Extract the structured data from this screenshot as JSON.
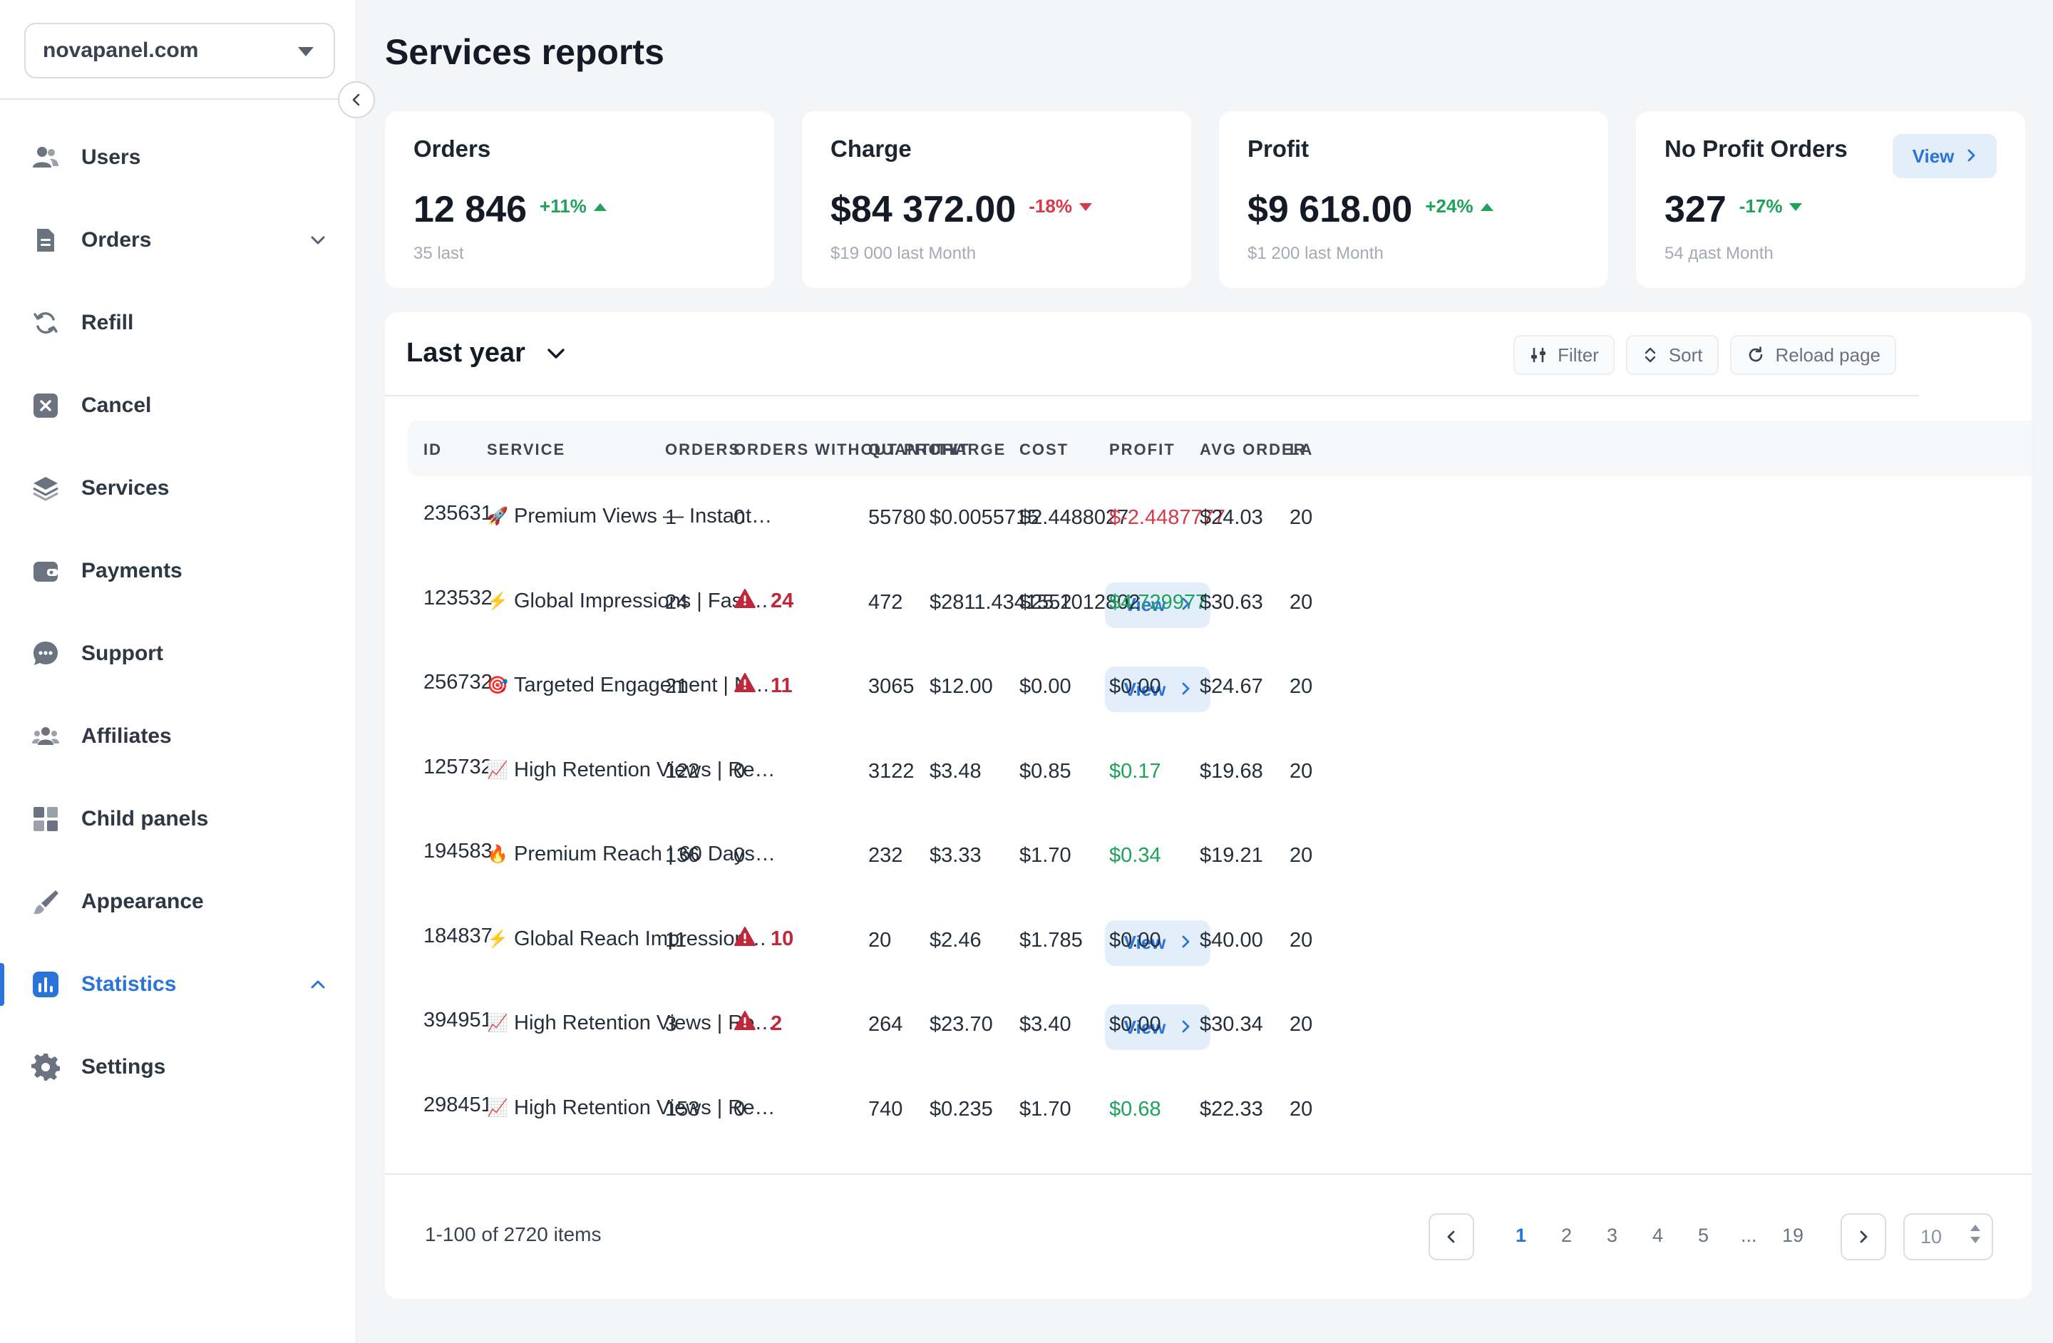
{
  "sidebar": {
    "site": "novapanel.com",
    "items": [
      {
        "label": "Users",
        "icon": "users-icon",
        "chevron": ""
      },
      {
        "label": "Orders",
        "icon": "orders-icon",
        "chevron": "down"
      },
      {
        "label": "Refill",
        "icon": "refill-icon",
        "chevron": ""
      },
      {
        "label": "Cancel",
        "icon": "cancel-icon",
        "chevron": ""
      },
      {
        "label": "Services",
        "icon": "layers-icon",
        "chevron": ""
      },
      {
        "label": "Payments",
        "icon": "wallet-icon",
        "chevron": ""
      },
      {
        "label": "Support",
        "icon": "chat-icon",
        "chevron": ""
      },
      {
        "label": "Affiliates",
        "icon": "affiliates-icon",
        "chevron": ""
      },
      {
        "label": "Child panels",
        "icon": "grid-icon",
        "chevron": ""
      },
      {
        "label": "Appearance",
        "icon": "brush-icon",
        "chevron": ""
      },
      {
        "label": "Statistics",
        "icon": "chart-icon",
        "chevron": "up",
        "active": true
      },
      {
        "label": "Settings",
        "icon": "gear-icon",
        "chevron": ""
      }
    ]
  },
  "page": {
    "title": "Services reports"
  },
  "cards": [
    {
      "title": "Orders",
      "value": "12 846",
      "delta": "+11%",
      "trend": "up",
      "sub": "35 last"
    },
    {
      "title": "Charge",
      "value": "$84 372.00",
      "delta": "-18%",
      "trend": "down",
      "sub": "$19 000 last Month"
    },
    {
      "title": "Profit",
      "value": "$9 618.00",
      "delta": "+24%",
      "trend": "up",
      "sub": "$1 200 last Month"
    },
    {
      "title": "No Profit Orders",
      "value": "327",
      "delta": "-17%",
      "trend": "up",
      "sub": "54 дast Month",
      "view_label": "View"
    }
  ],
  "toolbar": {
    "period": "Last year",
    "filter": "Filter",
    "sort": "Sort",
    "reload": "Reload page"
  },
  "table": {
    "columns": [
      "ID",
      "SERVICE",
      "ORDERS",
      "ORDERS WITHOUT PROFIT",
      "QUANTITY",
      "CHARGE",
      "COST",
      "PROFIT",
      "AVG ORDER",
      "LA"
    ],
    "view_label": "View",
    "rows": [
      {
        "id": "235631",
        "emoji": "🚀",
        "service": "Premium Views — Instant…",
        "orders": "1",
        "no_profit": "0",
        "warn": false,
        "quantity": "55780",
        "charge": "$0.0055715",
        "cost": "$2.4488027",
        "profit": "$-2.4487777",
        "profit_state": "neg",
        "avg": "$24.03",
        "last": "20"
      },
      {
        "id": "123532",
        "emoji": "⚡",
        "service": "Global Impressions | Fast…",
        "orders": "24",
        "no_profit": "24",
        "warn": true,
        "quantity": "472",
        "charge": "$2811.4341552",
        "cost": "$25.1012802",
        "profit": "$4.729977",
        "profit_state": "pos",
        "avg": "$30.63",
        "last": "20"
      },
      {
        "id": "256732",
        "emoji": "🎯",
        "service": "Targeted Engagement | N…",
        "orders": "21",
        "no_profit": "11",
        "warn": true,
        "quantity": "3065",
        "charge": "$12.00",
        "cost": "$0.00",
        "profit": "$0.00",
        "profit_state": "",
        "avg": "$24.67",
        "last": "20"
      },
      {
        "id": "125732",
        "emoji": "📈",
        "service": "High Retention Views | Re…",
        "orders": "122",
        "no_profit": "0",
        "warn": false,
        "quantity": "3122",
        "charge": "$3.48",
        "cost": "$0.85",
        "profit": "$0.17",
        "profit_state": "pos",
        "avg": "$19.68",
        "last": "20"
      },
      {
        "id": "194583",
        "emoji": "🔥",
        "service": "Premium Reach | 60 Days…",
        "orders": "136",
        "no_profit": "0",
        "warn": false,
        "quantity": "232",
        "charge": "$3.33",
        "cost": "$1.70",
        "profit": "$0.34",
        "profit_state": "pos",
        "avg": "$19.21",
        "last": "20"
      },
      {
        "id": "184837",
        "emoji": "⚡",
        "service": "Global Reach Impression…",
        "orders": "11",
        "no_profit": "10",
        "warn": true,
        "quantity": "20",
        "charge": "$2.46",
        "cost": "$1.785",
        "profit": "$0.00",
        "profit_state": "",
        "avg": "$40.00",
        "last": "20"
      },
      {
        "id": "394951",
        "emoji": "📈",
        "service": "High Retention Views | Re…",
        "orders": "3",
        "no_profit": "2",
        "warn": true,
        "quantity": "264",
        "charge": "$23.70",
        "cost": "$3.40",
        "profit": "$0.00",
        "profit_state": "",
        "avg": "$30.34",
        "last": "20"
      },
      {
        "id": "298451",
        "emoji": "📈",
        "service": "High Retention Views | Re…",
        "orders": "153",
        "no_profit": "0",
        "warn": false,
        "quantity": "740",
        "charge": "$0.235",
        "cost": "$1.70",
        "profit": "$0.68",
        "profit_state": "pos",
        "avg": "$22.33",
        "last": "20"
      }
    ]
  },
  "footer": {
    "items_text": "1-100 of 2720 items",
    "pages": [
      "1",
      "2",
      "3",
      "4",
      "5",
      "...",
      "19"
    ],
    "current_page": "1",
    "per_page": "10"
  },
  "colors": {
    "accent": "#2a74d8",
    "positive": "#1fa35a",
    "negative": "#d53a4a",
    "warning": "#c0273a"
  }
}
